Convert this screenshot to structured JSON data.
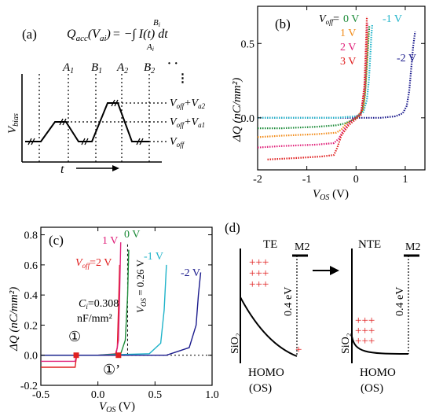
{
  "panel_a": {
    "label": "(a)",
    "equation_lhs": "Q",
    "equation_lhs_sub": "acc",
    "equation_arg": "(V",
    "equation_arg_sub": "ai",
    "equation_arg_close": ")",
    "equation_rhs": "= −∫ I(t) dt",
    "int_upper": "B",
    "int_upper_sub": "i",
    "int_lower": "A",
    "int_lower_sub": "i",
    "markers": [
      {
        "base": "A",
        "sub": "1"
      },
      {
        "base": "B",
        "sub": "1"
      },
      {
        "base": "A",
        "sub": "2"
      },
      {
        "base": "B",
        "sub": "2"
      }
    ],
    "dots": "· ·",
    "y_axis_base": "V",
    "y_axis_sub": "bias",
    "x_axis": "t",
    "levels": [
      {
        "base": "V",
        "sub": "off",
        "suffix": "+V",
        "suffix_sub": "a2"
      },
      {
        "base": "V",
        "sub": "off",
        "suffix": "+V",
        "suffix_sub": "a1"
      },
      {
        "base": "V",
        "sub": "off",
        "suffix": "",
        "suffix_sub": ""
      }
    ]
  },
  "panel_b": {
    "label": "(b)",
    "ylabel": "ΔQ (nC/mm²)",
    "xlabel_base": "V",
    "xlabel_sub": "OS",
    "xlabel_unit": " (V)",
    "legend_voff_base": "V",
    "legend_voff_sub": "off",
    "legend_eq": "=",
    "series_labels": [
      "0 V",
      "-1 V",
      "1 V",
      "2 V",
      "3 V",
      "-2 V"
    ]
  },
  "panel_c": {
    "label": "(c)",
    "ylabel": "ΔQ (nC/mm²)",
    "xlabel_base": "V",
    "xlabel_sub": "OS",
    "xlabel_unit": " (V)",
    "voff_base": "V",
    "voff_sub": "off",
    "voff_value": "=2 V",
    "series_labels": [
      "1 V",
      "0 V",
      "-1 V",
      "-2 V"
    ],
    "vos_annot_base": "V",
    "vos_annot_sub": "OS",
    "vos_annot_value": " = 0.26 V",
    "ci_base": "C",
    "ci_sub": "i",
    "ci_value": "=0.308",
    "ci_unit": "nF/mm²",
    "marker_1": "①",
    "marker_1p": "①’"
  },
  "panel_d": {
    "label": "(d)",
    "left_title": "TE",
    "right_title": "NTE",
    "metal_left": "M2",
    "metal_right": "M2",
    "oxide_left": "SiO₂",
    "oxide_right": "SiO₂",
    "barrier_left": "0.4 eV",
    "barrier_right": "0.4 eV",
    "homo_left": "HOMO",
    "homo_right": "HOMO",
    "os_left": "(OS)",
    "os_right": "(OS)",
    "plus_left": "+++",
    "plus_left_bottom": "+",
    "plus_right": "+++"
  },
  "chart_data": [
    {
      "type": "line",
      "panel": "b",
      "xlabel": "V_OS (V)",
      "ylabel": "ΔQ (nC/mm²)",
      "xlim": [
        -2,
        1.4
      ],
      "ylim": [
        -0.35,
        0.75
      ],
      "xticks": [
        "-2",
        "-1",
        "0",
        "1"
      ],
      "yticks": [
        "0.0",
        "0.5"
      ],
      "series": [
        {
          "name": "-2 V",
          "color": "#1a1a8c",
          "x": [
            -2.0,
            -1.0,
            0.0,
            0.5,
            0.8,
            0.95,
            1.03,
            1.08,
            1.12,
            1.16,
            1.2
          ],
          "y": [
            0.0,
            0.0,
            0.0,
            0.0,
            0.01,
            0.03,
            0.08,
            0.18,
            0.33,
            0.48,
            0.58
          ]
        },
        {
          "name": "-1 V",
          "color": "#1fb3c9",
          "x": [
            -2.0,
            -1.0,
            -0.4,
            0.0,
            0.15,
            0.22,
            0.26,
            0.29,
            0.31,
            0.33
          ],
          "y": [
            0.0,
            0.0,
            0.0,
            0.01,
            0.04,
            0.12,
            0.25,
            0.42,
            0.55,
            0.63
          ]
        },
        {
          "name": "0 V",
          "color": "#1e8c3a",
          "x": [
            -2.0,
            -1.5,
            -0.8,
            -0.4,
            -0.25,
            -0.1,
            0.05,
            0.13,
            0.18,
            0.21,
            0.24,
            0.27
          ],
          "y": [
            -0.07,
            -0.07,
            -0.06,
            -0.05,
            -0.04,
            -0.02,
            0.01,
            0.05,
            0.15,
            0.3,
            0.45,
            0.62
          ]
        },
        {
          "name": "1 V",
          "color": "#f28c1a",
          "x": [
            -2.0,
            -1.5,
            -0.8,
            -0.4,
            -0.3,
            -0.2,
            0.0,
            0.15,
            0.19,
            0.22,
            0.24
          ],
          "y": [
            -0.13,
            -0.12,
            -0.11,
            -0.1,
            -0.08,
            -0.04,
            0.0,
            0.06,
            0.2,
            0.4,
            0.58
          ]
        },
        {
          "name": "2 V",
          "color": "#e0207a",
          "x": [
            -2.0,
            -1.5,
            -0.8,
            -0.45,
            -0.35,
            -0.25,
            -0.1,
            0.1,
            0.18,
            0.21,
            0.23
          ],
          "y": [
            -0.2,
            -0.19,
            -0.18,
            -0.17,
            -0.14,
            -0.08,
            -0.02,
            0.03,
            0.2,
            0.45,
            0.64
          ]
        },
        {
          "name": "3 V",
          "color": "#e02020",
          "x": [
            -1.8,
            -1.2,
            -0.7,
            -0.45,
            -0.38,
            -0.3,
            -0.15,
            0.1,
            0.17,
            0.2,
            0.22
          ],
          "y": [
            -0.28,
            -0.27,
            -0.26,
            -0.25,
            -0.2,
            -0.12,
            -0.05,
            0.02,
            0.22,
            0.48,
            0.68
          ]
        }
      ]
    },
    {
      "type": "line",
      "panel": "c",
      "xlabel": "V_OS (V)",
      "ylabel": "ΔQ (nC/mm²)",
      "xlim": [
        -0.5,
        1.0
      ],
      "ylim": [
        -0.2,
        0.85
      ],
      "xticks": [
        "-0.5",
        "0.0",
        "0.5",
        "1.0"
      ],
      "yticks": [
        "-0.2",
        "0.0",
        "0.2",
        "0.4",
        "0.6",
        "0.8"
      ],
      "series": [
        {
          "name": "Voff=2 V",
          "color": "#e02020",
          "x": [
            -0.5,
            -0.2,
            -0.19,
            -0.18,
            0.0,
            0.15,
            0.17,
            0.18,
            0.19
          ],
          "y": [
            -0.08,
            -0.08,
            -0.02,
            0.0,
            0.0,
            0.0,
            0.05,
            0.3,
            0.6
          ]
        },
        {
          "name": "1 V",
          "color": "#e0207a",
          "x": [
            -0.5,
            -0.2,
            -0.19,
            -0.18,
            0.0,
            0.16,
            0.18,
            0.19,
            0.2
          ],
          "y": [
            -0.04,
            -0.04,
            -0.01,
            0.0,
            0.0,
            0.01,
            0.1,
            0.4,
            0.75
          ]
        },
        {
          "name": "0 V",
          "color": "#1e8c3a",
          "x": [
            -0.5,
            0.0,
            0.2,
            0.24,
            0.26,
            0.27
          ],
          "y": [
            0.0,
            0.0,
            0.01,
            0.1,
            0.4,
            0.7
          ]
        },
        {
          "name": "-1 V",
          "color": "#1fb3c9",
          "x": [
            -0.5,
            0.0,
            0.45,
            0.55,
            0.58,
            0.6
          ],
          "y": [
            0.0,
            0.0,
            0.01,
            0.08,
            0.3,
            0.6
          ]
        },
        {
          "name": "-2 V",
          "color": "#1a1a8c",
          "x": [
            -0.5,
            0.0,
            0.6,
            0.8,
            0.86,
            0.88,
            0.9
          ],
          "y": [
            0.0,
            0.0,
            0.0,
            0.05,
            0.2,
            0.4,
            0.55
          ]
        }
      ],
      "markers": [
        {
          "label": "①",
          "x": -0.19,
          "y": 0.0
        },
        {
          "label": "①’",
          "x": 0.18,
          "y": 0.0
        }
      ],
      "vline_x": 0.26
    }
  ]
}
